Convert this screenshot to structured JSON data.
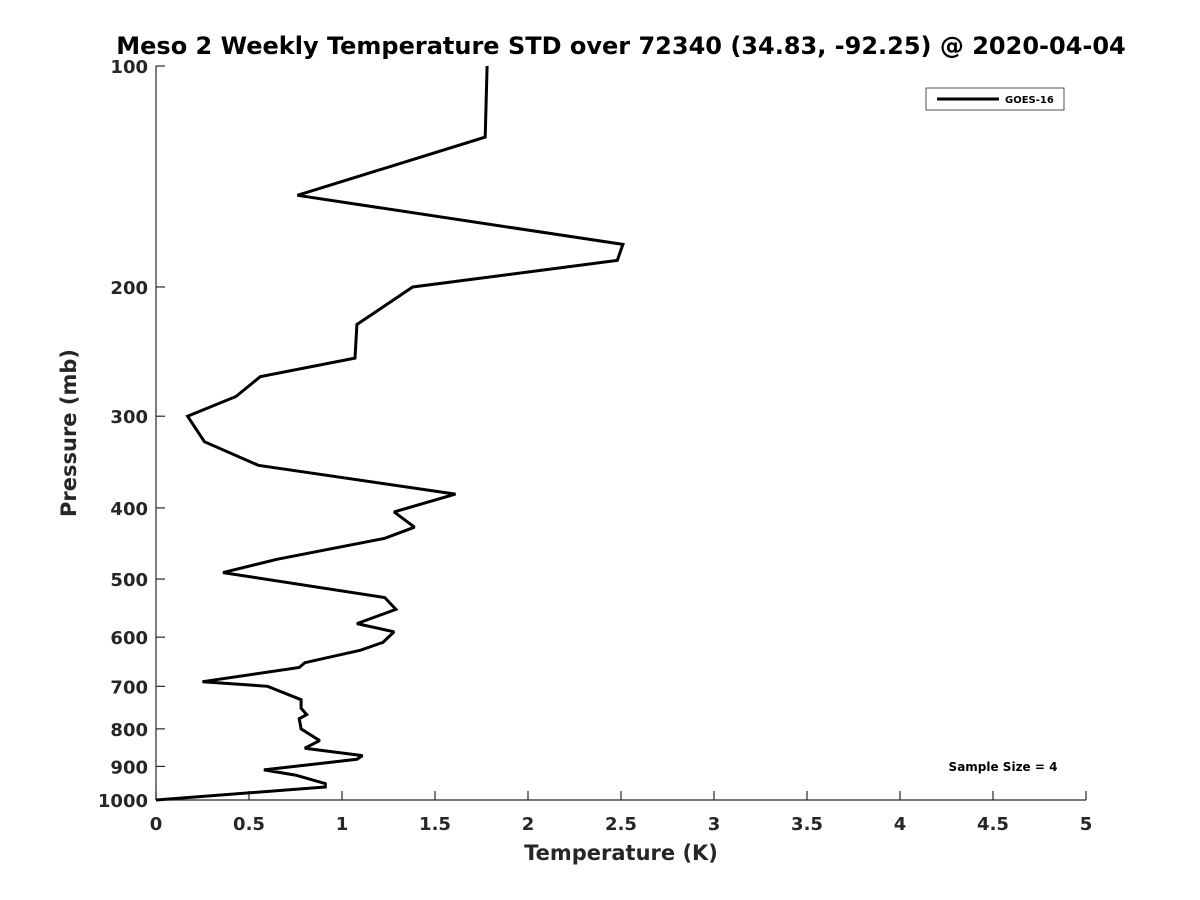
{
  "chart_data": {
    "type": "line",
    "title": "Meso 2 Weekly Temperature STD over 72340 (34.83, -92.25) @ 2020-04-04",
    "xlabel": "Temperature (K)",
    "ylabel": "Pressure (mb)",
    "xlim": [
      0,
      5
    ],
    "ylim": [
      100,
      1000
    ],
    "y_scale": "log",
    "y_reversed": true,
    "x_ticks": [
      "0",
      "0.5",
      "1",
      "1.5",
      "2",
      "2.5",
      "3",
      "3.5",
      "4",
      "4.5",
      "5"
    ],
    "y_ticks": [
      "100",
      "200",
      "300",
      "400",
      "500",
      "600",
      "700",
      "800",
      "900",
      "1000"
    ],
    "grid": false,
    "legend": {
      "position": "top-right",
      "entries": [
        "GOES-16"
      ]
    },
    "annotation": "Sample Size = 4",
    "series": [
      {
        "name": "GOES-16",
        "color": "#000000",
        "points": [
          [
            1.78,
            100
          ],
          [
            1.77,
            125
          ],
          [
            0.76,
            150
          ],
          [
            2.51,
            175
          ],
          [
            2.48,
            184
          ],
          [
            1.38,
            200
          ],
          [
            1.08,
            225
          ],
          [
            1.07,
            250
          ],
          [
            0.56,
            265
          ],
          [
            0.43,
            282
          ],
          [
            0.17,
            300
          ],
          [
            0.26,
            325
          ],
          [
            0.55,
            350
          ],
          [
            1.61,
            383
          ],
          [
            1.28,
            405
          ],
          [
            1.39,
            425
          ],
          [
            1.23,
            440
          ],
          [
            0.65,
            470
          ],
          [
            0.36,
            490
          ],
          [
            1.23,
            530
          ],
          [
            1.29,
            550
          ],
          [
            1.08,
            575
          ],
          [
            1.28,
            590
          ],
          [
            1.22,
            610
          ],
          [
            1.1,
            625
          ],
          [
            0.8,
            650
          ],
          [
            0.77,
            660
          ],
          [
            0.25,
            690
          ],
          [
            0.6,
            700
          ],
          [
            0.78,
            730
          ],
          [
            0.78,
            750
          ],
          [
            0.81,
            765
          ],
          [
            0.77,
            775
          ],
          [
            0.78,
            800
          ],
          [
            0.88,
            830
          ],
          [
            0.8,
            850
          ],
          [
            1.11,
            870
          ],
          [
            1.08,
            880
          ],
          [
            0.58,
            910
          ],
          [
            0.75,
            925
          ],
          [
            0.91,
            950
          ],
          [
            0.91,
            960
          ],
          [
            0.0,
            1000
          ]
        ]
      }
    ]
  }
}
